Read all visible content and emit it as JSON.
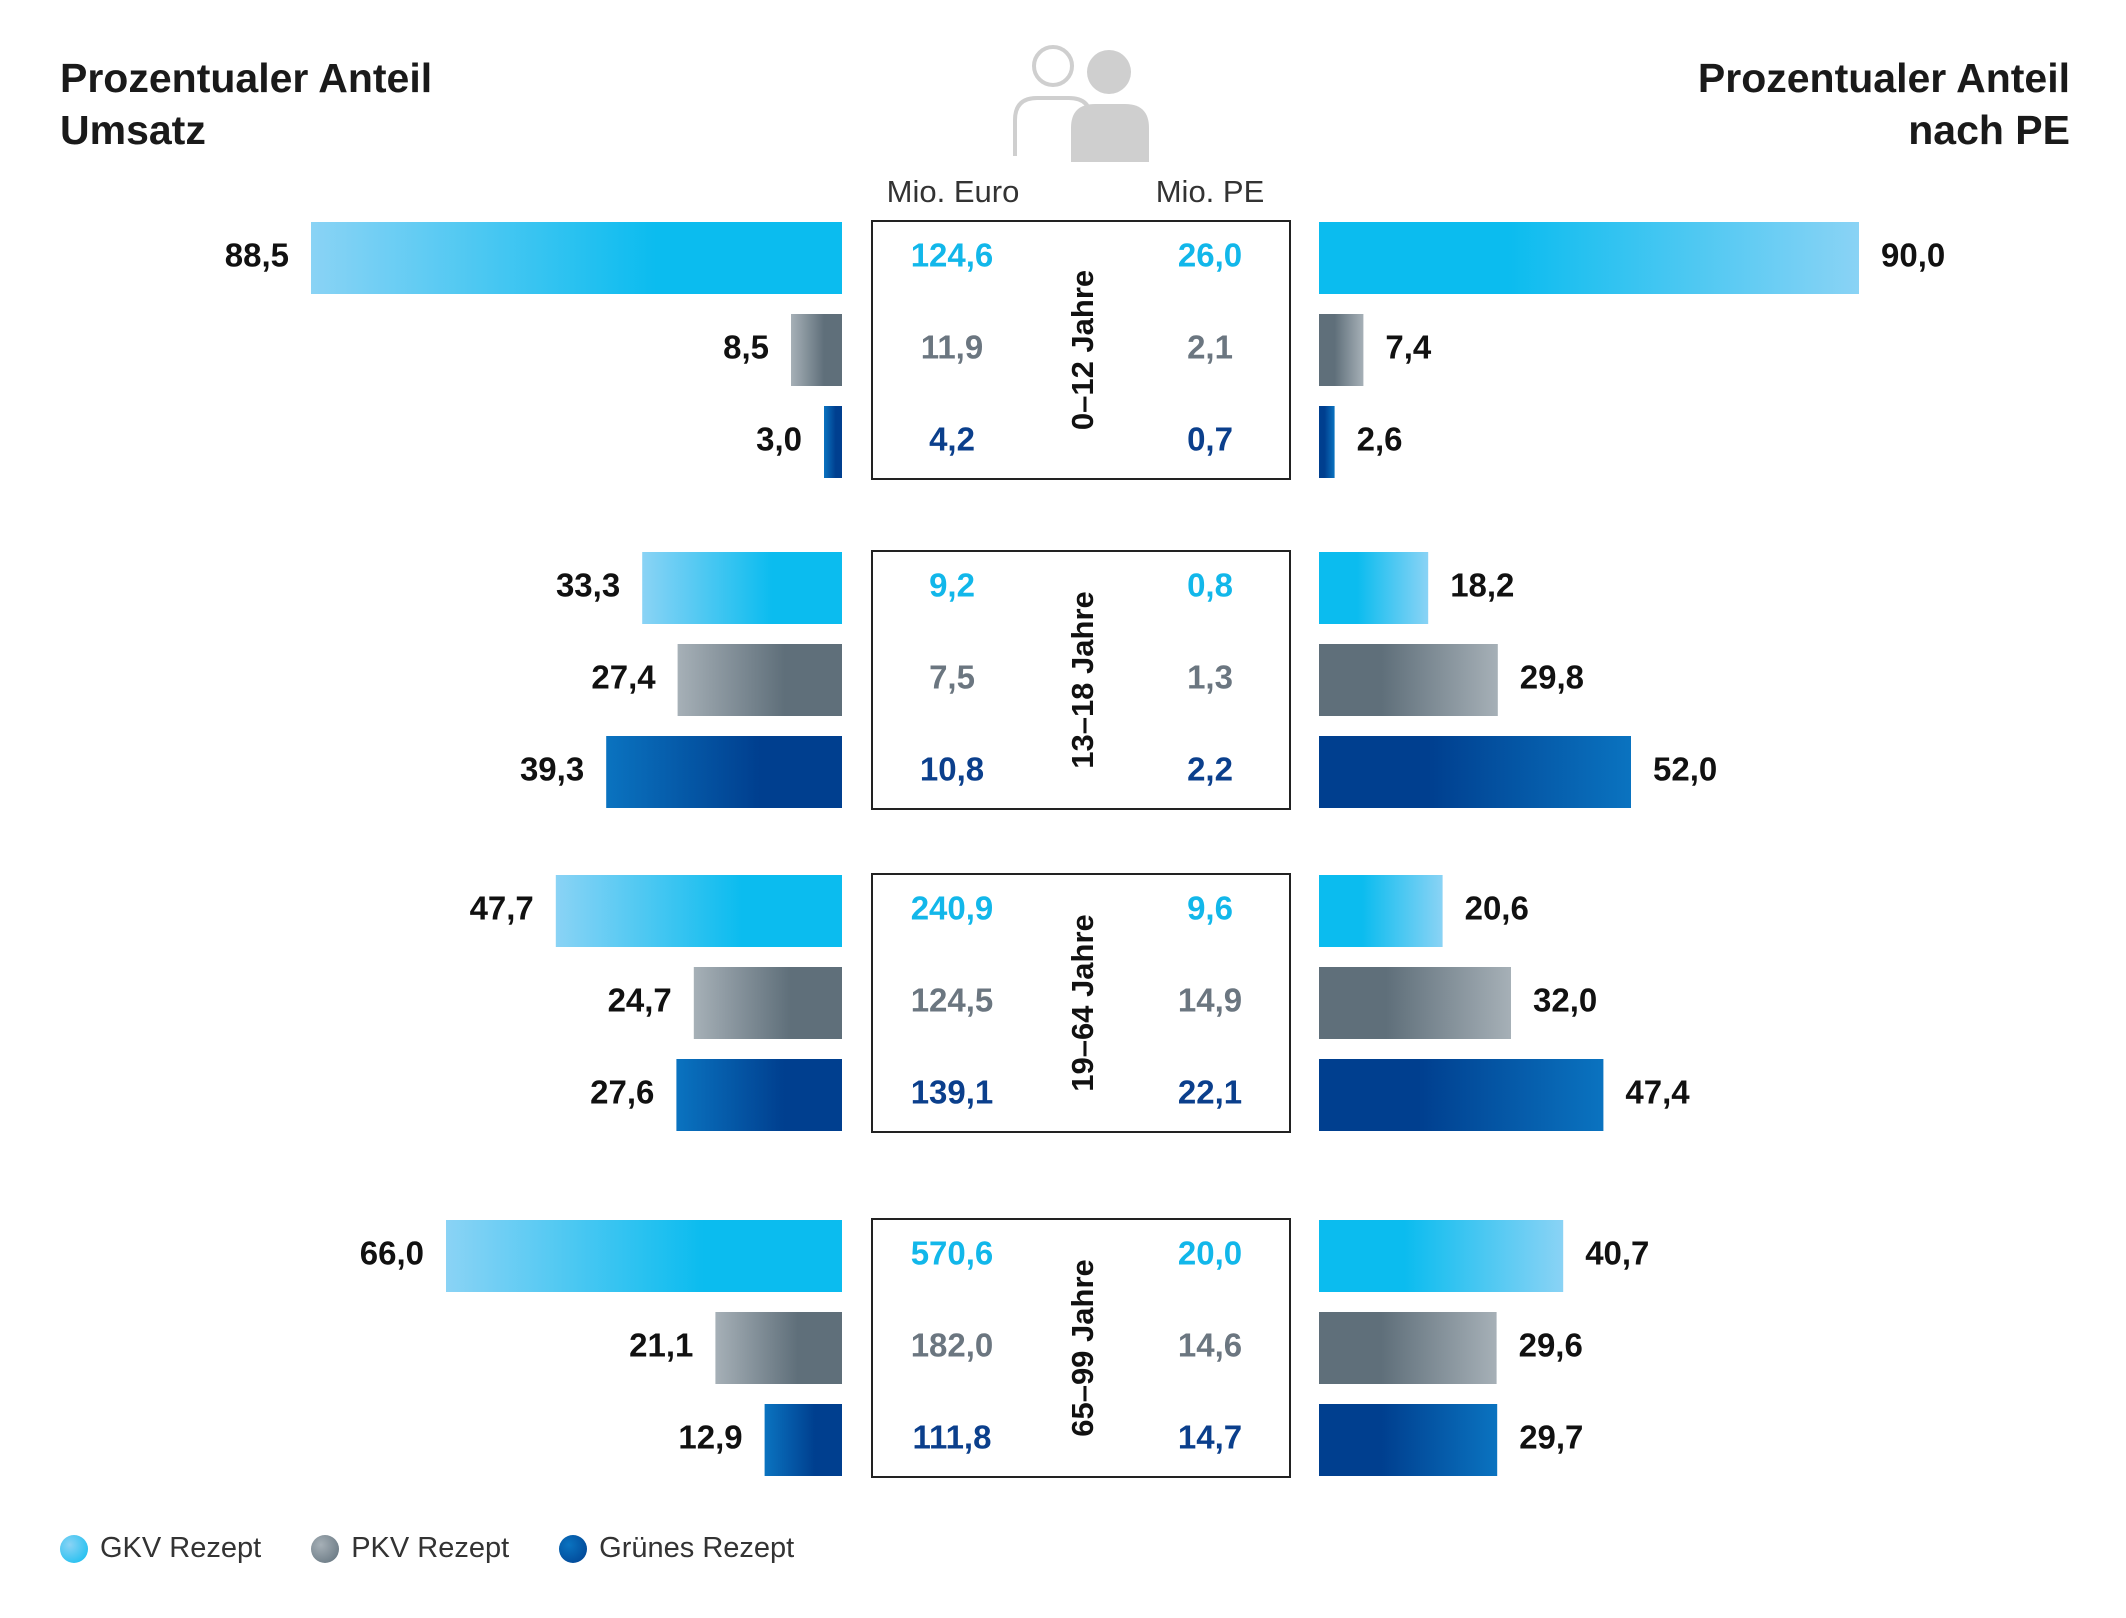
{
  "titles": {
    "left_line1": "Prozentualer Anteil",
    "left_line2": "Umsatz",
    "right_line1": "Prozentualer Anteil",
    "right_line2": "nach PE"
  },
  "column_headers": {
    "euro": "Mio. Euro",
    "pe": "Mio. PE"
  },
  "icon": "people-icon",
  "colors": {
    "gkv": "#0bbcef",
    "gkv_light": "#8ad3f5",
    "pkv": "#5f6f7a",
    "pkv_light": "#a6b0b7",
    "gruen": "#003f8f",
    "gruen_light": "#0a73c0",
    "gkv_text": "#12b7ea",
    "pkv_text": "#6b7680",
    "gruen_text": "#0b3f8c"
  },
  "chart_data": {
    "type": "bar",
    "series": [
      {
        "name": "GKV Rezept",
        "key": "gkv"
      },
      {
        "name": "PKV Rezept",
        "key": "pkv"
      },
      {
        "name": "Grünes Rezept",
        "key": "gruen"
      }
    ],
    "groups": [
      {
        "label": "0–12 Jahre",
        "umsatz_pct": [
          "88,5",
          "8,5",
          "3,0"
        ],
        "pe_pct": [
          "90,0",
          "7,4",
          "2,6"
        ],
        "mio_euro": [
          "124,6",
          "11,9",
          "4,2"
        ],
        "mio_pe": [
          "26,0",
          "2,1",
          "0,7"
        ]
      },
      {
        "label": "13–18 Jahre",
        "umsatz_pct": [
          "33,3",
          "27,4",
          "39,3"
        ],
        "pe_pct": [
          "18,2",
          "29,8",
          "52,0"
        ],
        "mio_euro": [
          "9,2",
          "7,5",
          "10,8"
        ],
        "mio_pe": [
          "0,8",
          "1,3",
          "2,2"
        ]
      },
      {
        "label": "19–64 Jahre",
        "umsatz_pct": [
          "47,7",
          "24,7",
          "27,6"
        ],
        "pe_pct": [
          "20,6",
          "32,0",
          "47,4"
        ],
        "mio_euro": [
          "240,9",
          "124,5",
          "139,1"
        ],
        "mio_pe": [
          "9,6",
          "14,9",
          "22,1"
        ]
      },
      {
        "label": "65–99 Jahre",
        "umsatz_pct": [
          "66,0",
          "21,1",
          "12,9"
        ],
        "pe_pct": [
          "40,7",
          "29,6",
          "29,7"
        ],
        "mio_euro": [
          "570,6",
          "182,0",
          "111,8"
        ],
        "mio_pe": [
          "20,0",
          "14,6",
          "14,7"
        ]
      }
    ],
    "xlim": [
      0,
      100
    ]
  },
  "legend": [
    {
      "label": "GKV Rezept",
      "key": "gkv"
    },
    {
      "label": "PKV Rezept",
      "key": "pkv"
    },
    {
      "label": "Grünes Rezept",
      "key": "gruen"
    }
  ]
}
